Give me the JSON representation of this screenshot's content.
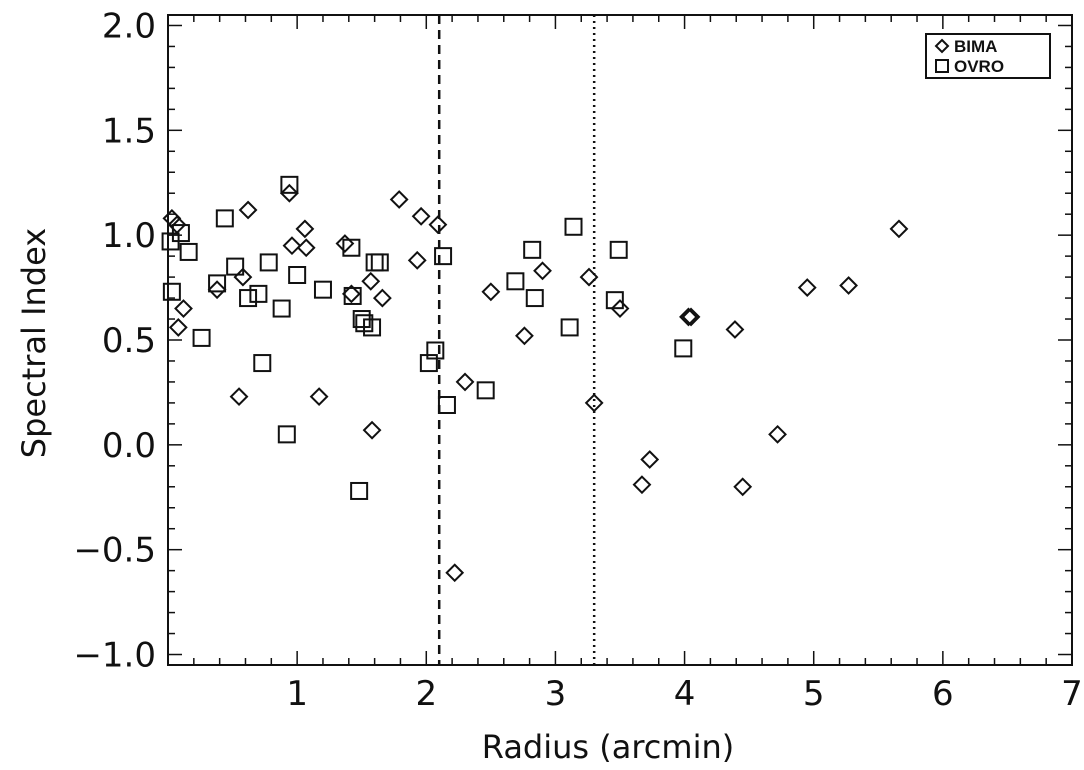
{
  "chart_data": {
    "type": "scatter",
    "xlabel": "Radius (arcmin)",
    "ylabel": "Spectral Index",
    "xlim": [
      0,
      7
    ],
    "ylim": [
      -1.05,
      2.05
    ],
    "x_ticks": [
      1,
      2,
      3,
      4,
      5,
      6,
      7
    ],
    "x_tick_labels": [
      "1",
      "2",
      "3",
      "4",
      "5",
      "6",
      "7"
    ],
    "y_ticks": [
      -1.0,
      -0.5,
      0.0,
      0.5,
      1.0,
      1.5,
      2.0
    ],
    "y_tick_labels": [
      "−1.0",
      "−0.5",
      "0.0",
      "0.5",
      "1.0",
      "1.5",
      "2.0"
    ],
    "legend_position": "top-right",
    "reference_lines": [
      {
        "x": 2.1,
        "style": "dashed"
      },
      {
        "x": 3.3,
        "style": "dotted"
      }
    ],
    "series": [
      {
        "name": "BIMA",
        "marker": "diamond",
        "color": "#111111",
        "points": [
          [
            0.03,
            1.08
          ],
          [
            0.07,
            1.05
          ],
          [
            0.08,
            0.56
          ],
          [
            0.12,
            0.65
          ],
          [
            0.38,
            0.74
          ],
          [
            0.55,
            0.23
          ],
          [
            0.58,
            0.8
          ],
          [
            0.62,
            1.12
          ],
          [
            0.94,
            1.2
          ],
          [
            0.96,
            0.95
          ],
          [
            1.06,
            1.03
          ],
          [
            1.07,
            0.94
          ],
          [
            1.17,
            0.23
          ],
          [
            1.37,
            0.96
          ],
          [
            1.42,
            0.72
          ],
          [
            1.57,
            0.78
          ],
          [
            1.58,
            0.07
          ],
          [
            1.66,
            0.7
          ],
          [
            1.79,
            1.17
          ],
          [
            1.93,
            0.88
          ],
          [
            1.96,
            1.09
          ],
          [
            2.09,
            1.05
          ],
          [
            2.22,
            -0.61
          ],
          [
            2.3,
            0.3
          ],
          [
            2.5,
            0.73
          ],
          [
            2.76,
            0.52
          ],
          [
            2.9,
            0.83
          ],
          [
            3.26,
            0.8
          ],
          [
            3.3,
            0.2
          ],
          [
            3.5,
            0.65
          ],
          [
            3.67,
            -0.19
          ],
          [
            3.73,
            -0.07
          ],
          [
            4.03,
            0.61
          ],
          [
            4.05,
            0.61
          ],
          [
            4.39,
            0.55
          ],
          [
            4.45,
            -0.2
          ],
          [
            4.72,
            0.05
          ],
          [
            4.95,
            0.75
          ],
          [
            5.27,
            0.76
          ],
          [
            5.66,
            1.03
          ]
        ]
      },
      {
        "name": "OVRO",
        "marker": "square",
        "color": "#111111",
        "points": [
          [
            0.02,
            0.97
          ],
          [
            0.03,
            0.73
          ],
          [
            0.1,
            1.01
          ],
          [
            0.16,
            0.92
          ],
          [
            0.26,
            0.51
          ],
          [
            0.38,
            0.77
          ],
          [
            0.44,
            1.08
          ],
          [
            0.52,
            0.85
          ],
          [
            0.62,
            0.7
          ],
          [
            0.7,
            0.72
          ],
          [
            0.73,
            0.39
          ],
          [
            0.78,
            0.87
          ],
          [
            0.88,
            0.65
          ],
          [
            0.92,
            0.05
          ],
          [
            0.94,
            1.24
          ],
          [
            1.0,
            0.81
          ],
          [
            1.2,
            0.74
          ],
          [
            1.42,
            0.94
          ],
          [
            1.43,
            0.71
          ],
          [
            1.48,
            -0.22
          ],
          [
            1.5,
            0.6
          ],
          [
            1.52,
            0.58
          ],
          [
            1.58,
            0.56
          ],
          [
            1.6,
            0.87
          ],
          [
            1.64,
            0.87
          ],
          [
            2.02,
            0.39
          ],
          [
            2.07,
            0.45
          ],
          [
            2.13,
            0.9
          ],
          [
            2.16,
            0.19
          ],
          [
            2.46,
            0.26
          ],
          [
            2.69,
            0.78
          ],
          [
            2.82,
            0.93
          ],
          [
            2.84,
            0.7
          ],
          [
            3.11,
            0.56
          ],
          [
            3.14,
            1.04
          ],
          [
            3.46,
            0.69
          ],
          [
            3.49,
            0.93
          ],
          [
            3.99,
            0.46
          ]
        ]
      }
    ]
  }
}
